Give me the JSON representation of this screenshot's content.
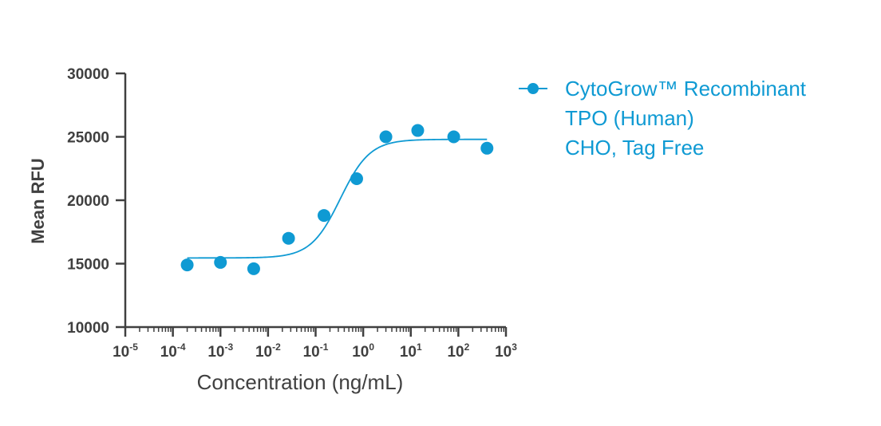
{
  "chart_data": {
    "type": "scatter",
    "x_scale": "log10",
    "xlabel": "Concentration (ng/mL)",
    "ylabel": "Mean RFU",
    "xlim": [
      1e-05,
      1000
    ],
    "ylim": [
      10000,
      30000
    ],
    "x_ticks": [
      {
        "base": "10",
        "exp": "-5"
      },
      {
        "base": "10",
        "exp": "-4"
      },
      {
        "base": "10",
        "exp": "-3"
      },
      {
        "base": "10",
        "exp": "-2"
      },
      {
        "base": "10",
        "exp": "-1"
      },
      {
        "base": "10",
        "exp": "0"
      },
      {
        "base": "10",
        "exp": "1"
      },
      {
        "base": "10",
        "exp": "2"
      },
      {
        "base": "10",
        "exp": "3"
      }
    ],
    "y_ticks": [
      "10000",
      "15000",
      "20000",
      "25000",
      "30000"
    ],
    "series": [
      {
        "name_lines": [
          "CytoGrow™ Recombinant",
          "TPO (Human)",
          "CHO, Tag Free"
        ],
        "color": "#0f9ad3",
        "points": [
          {
            "x": 0.0002,
            "y": 14900
          },
          {
            "x": 0.001,
            "y": 15100
          },
          {
            "x": 0.005,
            "y": 14600
          },
          {
            "x": 0.027,
            "y": 17000
          },
          {
            "x": 0.15,
            "y": 18800
          },
          {
            "x": 0.73,
            "y": 21700
          },
          {
            "x": 3.0,
            "y": 25000
          },
          {
            "x": 14,
            "y": 25500
          },
          {
            "x": 80,
            "y": 25000
          },
          {
            "x": 400,
            "y": 24100
          }
        ],
        "fit": {
          "bottom": 15450,
          "top": 24800,
          "log_ec50": -0.48,
          "hill": 1.4,
          "x_range": [
            0.0002,
            400
          ]
        }
      }
    ],
    "grid": false,
    "legend_position": "top-right"
  }
}
